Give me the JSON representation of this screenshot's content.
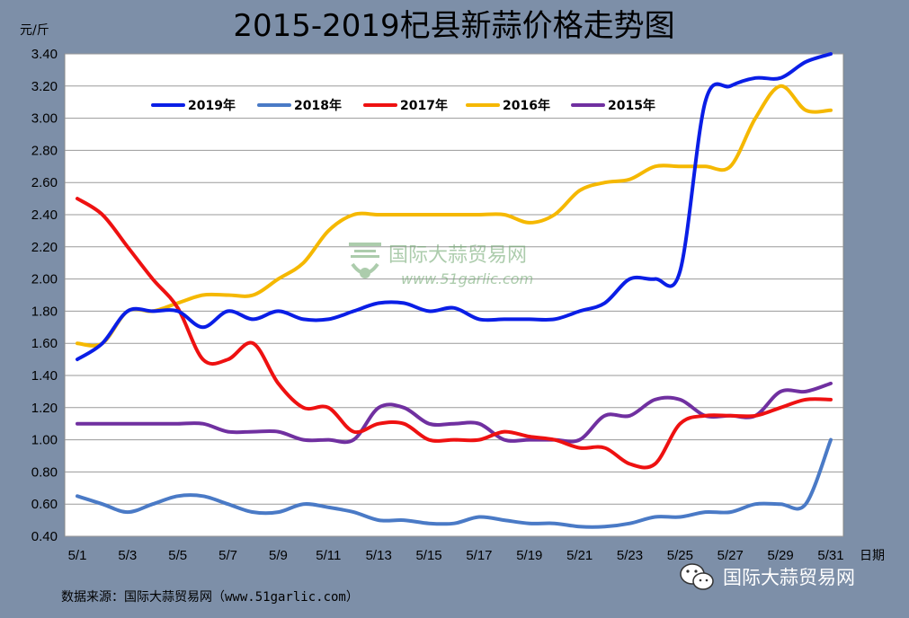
{
  "chart_data": {
    "type": "line",
    "title": "2015-2019杞县新蒜价格走势图",
    "ylabel": "元/斤",
    "xlabel": "日期",
    "ylim": [
      0.4,
      3.4
    ],
    "yticks": [
      "0.40",
      "0.60",
      "0.80",
      "1.00",
      "1.20",
      "1.40",
      "1.60",
      "1.80",
      "2.00",
      "2.20",
      "2.40",
      "2.60",
      "2.80",
      "3.00",
      "3.20",
      "3.40"
    ],
    "categories": [
      "5/1",
      "5/2",
      "5/3",
      "5/4",
      "5/5",
      "5/6",
      "5/7",
      "5/8",
      "5/9",
      "5/10",
      "5/11",
      "5/12",
      "5/13",
      "5/14",
      "5/15",
      "5/16",
      "5/17",
      "5/18",
      "5/19",
      "5/20",
      "5/21",
      "5/22",
      "5/23",
      "5/24",
      "5/25",
      "5/26",
      "5/27",
      "5/28",
      "5/29",
      "5/30",
      "5/31"
    ],
    "xtick_labels": [
      "5/1",
      "5/3",
      "5/5",
      "5/7",
      "5/9",
      "5/11",
      "5/13",
      "5/15",
      "5/17",
      "5/19",
      "5/21",
      "5/23",
      "5/25",
      "5/27",
      "5/29",
      "5/31"
    ],
    "grid": true,
    "legend_position": "top-left",
    "series": [
      {
        "name": "2019年",
        "color": "#0a1ee6",
        "values": [
          1.5,
          1.6,
          1.8,
          1.8,
          1.8,
          1.7,
          1.8,
          1.75,
          1.8,
          1.75,
          1.75,
          1.8,
          1.85,
          1.85,
          1.8,
          1.82,
          1.75,
          1.75,
          1.75,
          1.75,
          1.8,
          1.85,
          2.0,
          2.0,
          2.05,
          3.1,
          3.2,
          3.25,
          3.25,
          3.35,
          3.4
        ]
      },
      {
        "name": "2018年",
        "color": "#4a7ac6",
        "values": [
          0.65,
          0.6,
          0.55,
          0.6,
          0.65,
          0.65,
          0.6,
          0.55,
          0.55,
          0.6,
          0.58,
          0.55,
          0.5,
          0.5,
          0.48,
          0.48,
          0.52,
          0.5,
          0.48,
          0.48,
          0.46,
          0.46,
          0.48,
          0.52,
          0.52,
          0.55,
          0.55,
          0.6,
          0.6,
          0.6,
          1.0
        ]
      },
      {
        "name": "2017年",
        "color": "#ee1111",
        "values": [
          2.5,
          2.4,
          2.2,
          2.0,
          1.82,
          1.5,
          1.5,
          1.6,
          1.35,
          1.2,
          1.2,
          1.05,
          1.1,
          1.1,
          1.0,
          1.0,
          1.0,
          1.05,
          1.02,
          1.0,
          0.95,
          0.95,
          0.85,
          0.85,
          1.1,
          1.15,
          1.15,
          1.15,
          1.2,
          1.25,
          1.25
        ]
      },
      {
        "name": "2016年",
        "color": "#f5b800",
        "values": [
          1.6,
          1.6,
          1.8,
          1.8,
          1.85,
          1.9,
          1.9,
          1.9,
          2.0,
          2.1,
          2.3,
          2.4,
          2.4,
          2.4,
          2.4,
          2.4,
          2.4,
          2.4,
          2.35,
          2.4,
          2.55,
          2.6,
          2.62,
          2.7,
          2.7,
          2.7,
          2.7,
          3.0,
          3.2,
          3.05,
          3.05
        ]
      },
      {
        "name": "2015年",
        "color": "#7030a0",
        "values": [
          1.1,
          1.1,
          1.1,
          1.1,
          1.1,
          1.1,
          1.05,
          1.05,
          1.05,
          1.0,
          1.0,
          1.0,
          1.2,
          1.2,
          1.1,
          1.1,
          1.1,
          1.0,
          1.0,
          1.0,
          1.0,
          1.15,
          1.15,
          1.25,
          1.25,
          1.15,
          1.15,
          1.15,
          1.3,
          1.3,
          1.35
        ]
      }
    ]
  },
  "watermark": {
    "name": "国际大蒜贸易网",
    "url": "www.51garlic.com"
  },
  "footer": {
    "source": "数据来源：国际大蒜贸易网（www.51garlic.com）",
    "wechat_label": "国际大蒜贸易网"
  }
}
